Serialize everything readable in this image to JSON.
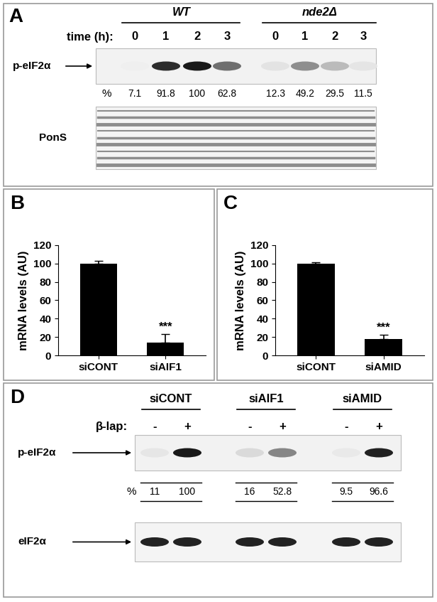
{
  "blots": [
    {
      "title": "A",
      "lane_header_label": "time (h):",
      "groups": [
        {
          "name": "WT",
          "lanes": [
            0,
            1,
            2,
            3
          ]
        },
        {
          "name": "nde2Δ",
          "lanes": [
            0,
            1,
            2,
            3
          ]
        }
      ],
      "rows": [
        {
          "label": "p-eIF2α",
          "percent": [
            7.1,
            91.8,
            100,
            62.8,
            12.3,
            49.2,
            29.5,
            11.5
          ]
        }
      ],
      "percent_label": "%",
      "loading_label": "PonS"
    },
    {
      "title": "D",
      "lane_header_label": "β-lap:",
      "groups": [
        {
          "name": "siCONT",
          "lanes": [
            "-",
            "+"
          ]
        },
        {
          "name": "siAIF1",
          "lanes": [
            "-",
            "+"
          ]
        },
        {
          "name": "siAMID",
          "lanes": [
            "-",
            "+"
          ]
        }
      ],
      "rows": [
        {
          "label": "p-eIF2α",
          "percent": [
            11,
            100,
            16,
            52.8,
            9.5,
            96.6
          ]
        }
      ],
      "percent_label": "%",
      "loading_label": "eIF2α"
    }
  ],
  "chart_data": [
    {
      "type": "bar",
      "title": "B",
      "categories": [
        "siCONT",
        "siAIF1"
      ],
      "values": [
        100,
        14
      ],
      "errors": [
        3,
        9
      ],
      "significance": [
        null,
        "***"
      ],
      "color": "#000000",
      "y_label": "mRNA levels (AU)",
      "ylim": [
        0,
        120
      ],
      "yticks": [
        0,
        20,
        40,
        60,
        80,
        100,
        120
      ]
    },
    {
      "type": "bar",
      "title": "C",
      "categories": [
        "siCONT",
        "siAMID"
      ],
      "values": [
        100,
        18
      ],
      "errors": [
        1.5,
        4.5
      ],
      "significance": [
        null,
        "***"
      ],
      "color": "#000000",
      "y_label": "mRNA levels (AU)",
      "ylim": [
        0,
        120
      ],
      "yticks": [
        0,
        20,
        40,
        60,
        80,
        100,
        120
      ]
    }
  ]
}
